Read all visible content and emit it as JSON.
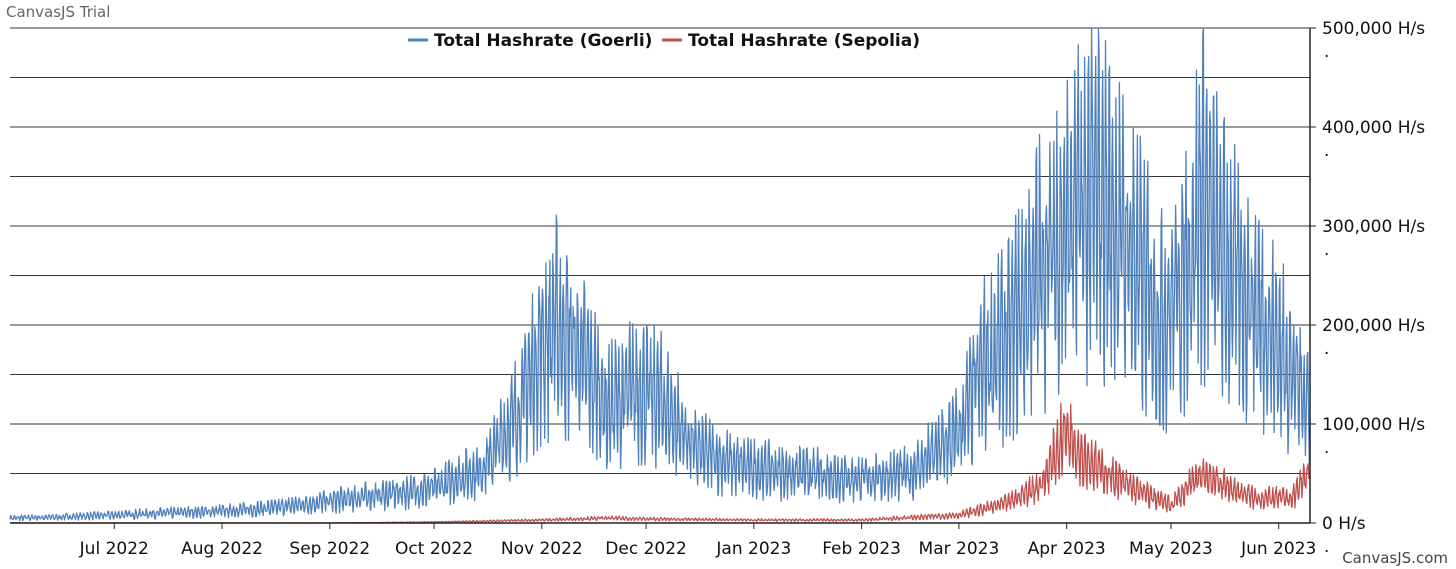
{
  "watermark": "CanvasJS Trial",
  "credit": "CanvasJS.com",
  "chart_data": {
    "type": "line",
    "x_axis": {
      "type": "date",
      "range": [
        "2022-06-01",
        "2023-06-10"
      ],
      "tick_labels": [
        "Jul 2022",
        "Aug 2022",
        "Sep 2022",
        "Oct 2022",
        "Nov 2022",
        "Dec 2022",
        "Jan 2023",
        "Feb 2023",
        "Mar 2023",
        "Apr 2023",
        "May 2023",
        "Jun 2023"
      ],
      "tick_dates": [
        "2022-07-01",
        "2022-08-01",
        "2022-09-01",
        "2022-10-01",
        "2022-11-01",
        "2022-12-01",
        "2023-01-01",
        "2023-02-01",
        "2023-03-01",
        "2023-04-01",
        "2023-05-01",
        "2023-06-01"
      ]
    },
    "y_axis": {
      "position": "right",
      "range": [
        0,
        500000
      ],
      "grid_interval": 50000,
      "tick_values": [
        0,
        100000,
        200000,
        300000,
        400000,
        500000
      ],
      "tick_labels": [
        "0 H/s",
        "100,000 H/s",
        "200,000 H/s",
        "300,000 H/s",
        "400,000 H/s",
        "500,000 H/s"
      ],
      "tick_suffix": "."
    },
    "grid": true,
    "legend": {
      "placement": "top-center"
    },
    "series": [
      {
        "name": "Total Hashrate (Goerli)",
        "color": "#4f81bc",
        "points": [
          [
            "2022-06-01",
            5000
          ],
          [
            "2022-06-15",
            6000
          ],
          [
            "2022-07-01",
            8000
          ],
          [
            "2022-07-15",
            10000
          ],
          [
            "2022-08-01",
            12000
          ],
          [
            "2022-08-15",
            15000
          ],
          [
            "2022-09-01",
            22000
          ],
          [
            "2022-09-15",
            28000
          ],
          [
            "2022-10-01",
            35000
          ],
          [
            "2022-10-15",
            55000
          ],
          [
            "2022-10-25",
            110000
          ],
          [
            "2022-11-01",
            180000
          ],
          [
            "2022-11-05",
            200000
          ],
          [
            "2022-11-12",
            170000
          ],
          [
            "2022-11-20",
            115000
          ],
          [
            "2022-11-28",
            135000
          ],
          [
            "2022-12-05",
            125000
          ],
          [
            "2022-12-15",
            75000
          ],
          [
            "2022-12-25",
            60000
          ],
          [
            "2023-01-01",
            55000
          ],
          [
            "2023-01-15",
            50000
          ],
          [
            "2023-02-01",
            45000
          ],
          [
            "2023-02-15",
            50000
          ],
          [
            "2023-03-01",
            90000
          ],
          [
            "2023-03-08",
            160000
          ],
          [
            "2023-03-15",
            180000
          ],
          [
            "2023-03-22",
            240000
          ],
          [
            "2023-04-01",
            300000
          ],
          [
            "2023-04-10",
            330000
          ],
          [
            "2023-04-20",
            270000
          ],
          [
            "2023-04-28",
            200000
          ],
          [
            "2023-05-05",
            250000
          ],
          [
            "2023-05-10",
            330000
          ],
          [
            "2023-05-15",
            270000
          ],
          [
            "2023-05-25",
            220000
          ],
          [
            "2023-06-01",
            175000
          ],
          [
            "2023-06-10",
            120000
          ]
        ]
      },
      {
        "name": "Total Hashrate (Sepolia)",
        "color": "#c0504e",
        "points": [
          [
            "2022-06-01",
            0
          ],
          [
            "2022-07-01",
            0
          ],
          [
            "2022-08-01",
            0
          ],
          [
            "2022-09-01",
            0
          ],
          [
            "2022-10-01",
            1000
          ],
          [
            "2022-11-01",
            3000
          ],
          [
            "2022-11-20",
            5000
          ],
          [
            "2022-12-01",
            4000
          ],
          [
            "2023-01-01",
            3000
          ],
          [
            "2023-02-01",
            3000
          ],
          [
            "2023-03-01",
            8000
          ],
          [
            "2023-03-15",
            20000
          ],
          [
            "2023-03-25",
            40000
          ],
          [
            "2023-04-01",
            95000
          ],
          [
            "2023-04-05",
            70000
          ],
          [
            "2023-04-10",
            55000
          ],
          [
            "2023-04-20",
            35000
          ],
          [
            "2023-05-01",
            18000
          ],
          [
            "2023-05-10",
            50000
          ],
          [
            "2023-05-15",
            40000
          ],
          [
            "2023-05-25",
            25000
          ],
          [
            "2023-06-05",
            25000
          ],
          [
            "2023-06-10",
            55000
          ]
        ]
      }
    ]
  }
}
